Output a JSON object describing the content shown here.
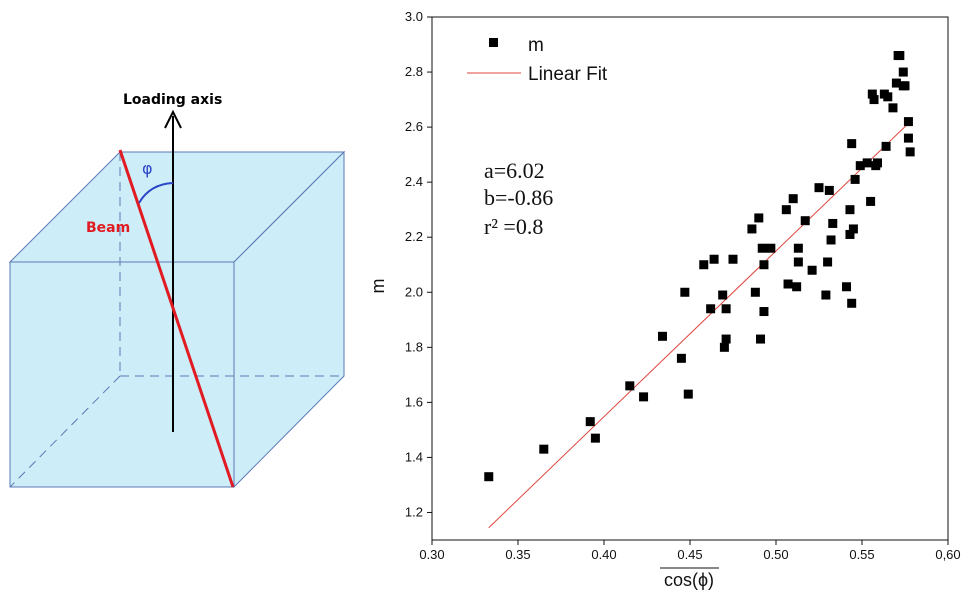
{
  "diagram": {
    "loading_axis_label": "Loading axis",
    "beam_label": "Beam",
    "angle_label": "φ",
    "colors": {
      "cube_fill": "#cdeef8",
      "cube_edge": "#5b78b5",
      "beam": "#e11b22",
      "angle_arc": "#2c46c8",
      "axis": "#000000"
    }
  },
  "chart_data": {
    "type": "scatter",
    "xlabel": "cos(ϕ)",
    "ylabel": "m",
    "xlim": [
      0.3,
      0.6
    ],
    "ylim": [
      1.1,
      3.0
    ],
    "x_ticks": [
      "0.30",
      "0.35",
      "0.40",
      "0.45",
      "0.50",
      "0.55",
      "0,60"
    ],
    "y_ticks": [
      "1.2",
      "1.4",
      "1.6",
      "1.8",
      "2.0",
      "2.2",
      "2.4",
      "2.6",
      "2.8",
      "3.0"
    ],
    "legend": {
      "position": "top-left",
      "entries": [
        "m",
        "Linear Fit"
      ]
    },
    "series": [
      {
        "name": "m",
        "marker": "square",
        "color": "#000000",
        "points": [
          [
            0.333,
            1.33
          ],
          [
            0.365,
            1.43
          ],
          [
            0.392,
            1.53
          ],
          [
            0.395,
            1.47
          ],
          [
            0.415,
            1.66
          ],
          [
            0.423,
            1.62
          ],
          [
            0.434,
            1.84
          ],
          [
            0.445,
            1.76
          ],
          [
            0.447,
            2.0
          ],
          [
            0.449,
            1.63
          ],
          [
            0.458,
            2.1
          ],
          [
            0.462,
            1.94
          ],
          [
            0.464,
            2.12
          ],
          [
            0.469,
            1.99
          ],
          [
            0.47,
            1.8
          ],
          [
            0.471,
            1.83
          ],
          [
            0.471,
            1.94
          ],
          [
            0.475,
            2.12
          ],
          [
            0.486,
            2.23
          ],
          [
            0.488,
            2.0
          ],
          [
            0.49,
            2.27
          ],
          [
            0.491,
            1.83
          ],
          [
            0.492,
            2.16
          ],
          [
            0.493,
            1.93
          ],
          [
            0.493,
            2.1
          ],
          [
            0.497,
            2.16
          ],
          [
            0.506,
            2.3
          ],
          [
            0.507,
            2.03
          ],
          [
            0.51,
            2.34
          ],
          [
            0.512,
            2.02
          ],
          [
            0.513,
            2.16
          ],
          [
            0.513,
            2.11
          ],
          [
            0.517,
            2.26
          ],
          [
            0.521,
            2.08
          ],
          [
            0.525,
            2.38
          ],
          [
            0.529,
            1.99
          ],
          [
            0.53,
            2.11
          ],
          [
            0.531,
            2.37
          ],
          [
            0.532,
            2.19
          ],
          [
            0.533,
            2.25
          ],
          [
            0.541,
            2.02
          ],
          [
            0.543,
            2.21
          ],
          [
            0.543,
            2.3
          ],
          [
            0.544,
            1.96
          ],
          [
            0.544,
            2.54
          ],
          [
            0.545,
            2.23
          ],
          [
            0.546,
            2.41
          ],
          [
            0.549,
            2.46
          ],
          [
            0.553,
            2.47
          ],
          [
            0.555,
            2.33
          ],
          [
            0.556,
            2.72
          ],
          [
            0.557,
            2.7
          ],
          [
            0.558,
            2.46
          ],
          [
            0.559,
            2.47
          ],
          [
            0.563,
            2.72
          ],
          [
            0.564,
            2.53
          ],
          [
            0.565,
            2.71
          ],
          [
            0.568,
            2.67
          ],
          [
            0.57,
            2.76
          ],
          [
            0.571,
            2.86
          ],
          [
            0.572,
            2.86
          ],
          [
            0.574,
            2.75
          ],
          [
            0.574,
            2.8
          ],
          [
            0.575,
            2.75
          ],
          [
            0.577,
            2.62
          ],
          [
            0.577,
            2.56
          ],
          [
            0.578,
            2.51
          ]
        ]
      },
      {
        "name": "Linear Fit",
        "type": "line",
        "color": "#e0453d",
        "slope": 6.02,
        "intercept": -0.86,
        "x_range": [
          0.333,
          0.578
        ]
      }
    ],
    "annotations": [
      "a=6.02",
      "b=-0.86",
      "r² =0.8"
    ]
  }
}
